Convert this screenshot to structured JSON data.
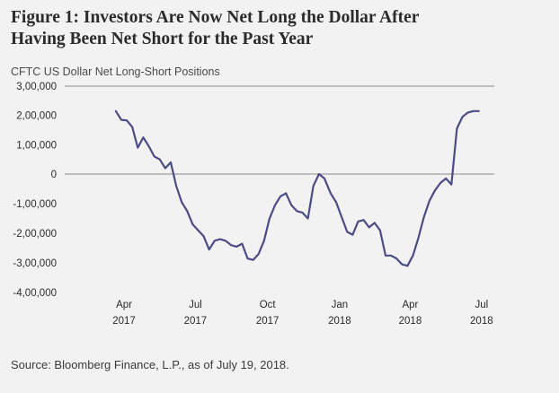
{
  "header": {
    "title_line1": "Figure 1: Investors Are Now Net Long the Dollar After",
    "title_line2": "Having Been Net Short for the Past Year",
    "subtitle": "CFTC US Dollar Net Long-Short Positions"
  },
  "footer": {
    "source": "Source: Bloomberg Finance, L.P., as of July 19, 2018."
  },
  "colors": {
    "line": "#4d4b86",
    "grid": "#8a8a8a",
    "background": "#f3f2f2"
  },
  "chart_data": {
    "type": "line",
    "title": "",
    "xlabel": "",
    "ylabel": "",
    "ylim": [
      -400000,
      300000
    ],
    "yticks": [
      300000,
      200000,
      100000,
      0,
      -100000,
      -200000,
      -300000,
      -400000
    ],
    "ytick_labels": [
      "3,00,000",
      "2,00,000",
      "1,00,000",
      "0",
      "-1,00,000",
      "-2,00,000",
      "-3,00,000",
      "-4,00,000"
    ],
    "xlim": [
      "2017-03-01",
      "2018-07-31"
    ],
    "xticks": [
      {
        "date": "2017-04-01",
        "month": "Apr",
        "year": "2017"
      },
      {
        "date": "2017-07-01",
        "month": "Jul",
        "year": "2017"
      },
      {
        "date": "2017-10-01",
        "month": "Oct",
        "year": "2017"
      },
      {
        "date": "2018-01-01",
        "month": "Jan",
        "year": "2018"
      },
      {
        "date": "2018-04-01",
        "month": "Apr",
        "year": "2018"
      },
      {
        "date": "2018-07-01",
        "month": "Jul",
        "year": "2018"
      }
    ],
    "gridlines": [
      300000,
      0
    ],
    "series": [
      {
        "points": [
          {
            "x": "2017-04-02",
            "y": 215000
          },
          {
            "x": "2017-04-09",
            "y": 185000
          },
          {
            "x": "2017-04-16",
            "y": 183000
          },
          {
            "x": "2017-04-23",
            "y": 160000
          },
          {
            "x": "2017-04-30",
            "y": 90000
          },
          {
            "x": "2017-05-07",
            "y": 125000
          },
          {
            "x": "2017-05-14",
            "y": 95000
          },
          {
            "x": "2017-05-21",
            "y": 60000
          },
          {
            "x": "2017-05-28",
            "y": 50000
          },
          {
            "x": "2017-06-04",
            "y": 20000
          },
          {
            "x": "2017-06-11",
            "y": 40000
          },
          {
            "x": "2017-06-18",
            "y": -40000
          },
          {
            "x": "2017-06-25",
            "y": -95000
          },
          {
            "x": "2017-07-02",
            "y": -125000
          },
          {
            "x": "2017-07-09",
            "y": -170000
          },
          {
            "x": "2017-07-16",
            "y": -190000
          },
          {
            "x": "2017-07-23",
            "y": -210000
          },
          {
            "x": "2017-07-30",
            "y": -255000
          },
          {
            "x": "2017-08-06",
            "y": -225000
          },
          {
            "x": "2017-08-13",
            "y": -220000
          },
          {
            "x": "2017-08-20",
            "y": -225000
          },
          {
            "x": "2017-08-27",
            "y": -240000
          },
          {
            "x": "2017-09-03",
            "y": -245000
          },
          {
            "x": "2017-09-10",
            "y": -235000
          },
          {
            "x": "2017-09-17",
            "y": -285000
          },
          {
            "x": "2017-09-24",
            "y": -290000
          },
          {
            "x": "2017-10-01",
            "y": -270000
          },
          {
            "x": "2017-10-08",
            "y": -225000
          },
          {
            "x": "2017-10-15",
            "y": -150000
          },
          {
            "x": "2017-10-22",
            "y": -105000
          },
          {
            "x": "2017-10-29",
            "y": -75000
          },
          {
            "x": "2017-11-05",
            "y": -65000
          },
          {
            "x": "2017-11-12",
            "y": -105000
          },
          {
            "x": "2017-11-19",
            "y": -125000
          },
          {
            "x": "2017-11-26",
            "y": -130000
          },
          {
            "x": "2017-12-03",
            "y": -150000
          },
          {
            "x": "2017-12-10",
            "y": -40000
          },
          {
            "x": "2017-12-17",
            "y": 0
          },
          {
            "x": "2017-12-24",
            "y": -15000
          },
          {
            "x": "2018-01-01",
            "y": -65000
          },
          {
            "x": "2018-01-08",
            "y": -95000
          },
          {
            "x": "2018-01-15",
            "y": -145000
          },
          {
            "x": "2018-01-22",
            "y": -195000
          },
          {
            "x": "2018-01-29",
            "y": -205000
          },
          {
            "x": "2018-02-05",
            "y": -160000
          },
          {
            "x": "2018-02-12",
            "y": -155000
          },
          {
            "x": "2018-02-19",
            "y": -180000
          },
          {
            "x": "2018-02-26",
            "y": -165000
          },
          {
            "x": "2018-03-05",
            "y": -190000
          },
          {
            "x": "2018-03-12",
            "y": -275000
          },
          {
            "x": "2018-03-19",
            "y": -275000
          },
          {
            "x": "2018-03-26",
            "y": -285000
          },
          {
            "x": "2018-04-02",
            "y": -305000
          },
          {
            "x": "2018-04-09",
            "y": -310000
          },
          {
            "x": "2018-04-16",
            "y": -275000
          },
          {
            "x": "2018-04-23",
            "y": -215000
          },
          {
            "x": "2018-04-30",
            "y": -145000
          },
          {
            "x": "2018-05-07",
            "y": -90000
          },
          {
            "x": "2018-05-14",
            "y": -55000
          },
          {
            "x": "2018-05-21",
            "y": -30000
          },
          {
            "x": "2018-05-28",
            "y": -15000
          },
          {
            "x": "2018-06-04",
            "y": -35000
          },
          {
            "x": "2018-06-11",
            "y": 155000
          },
          {
            "x": "2018-06-18",
            "y": 195000
          },
          {
            "x": "2018-06-25",
            "y": 210000
          },
          {
            "x": "2018-07-02",
            "y": 215000
          },
          {
            "x": "2018-07-09",
            "y": 215000
          }
        ]
      }
    ]
  }
}
